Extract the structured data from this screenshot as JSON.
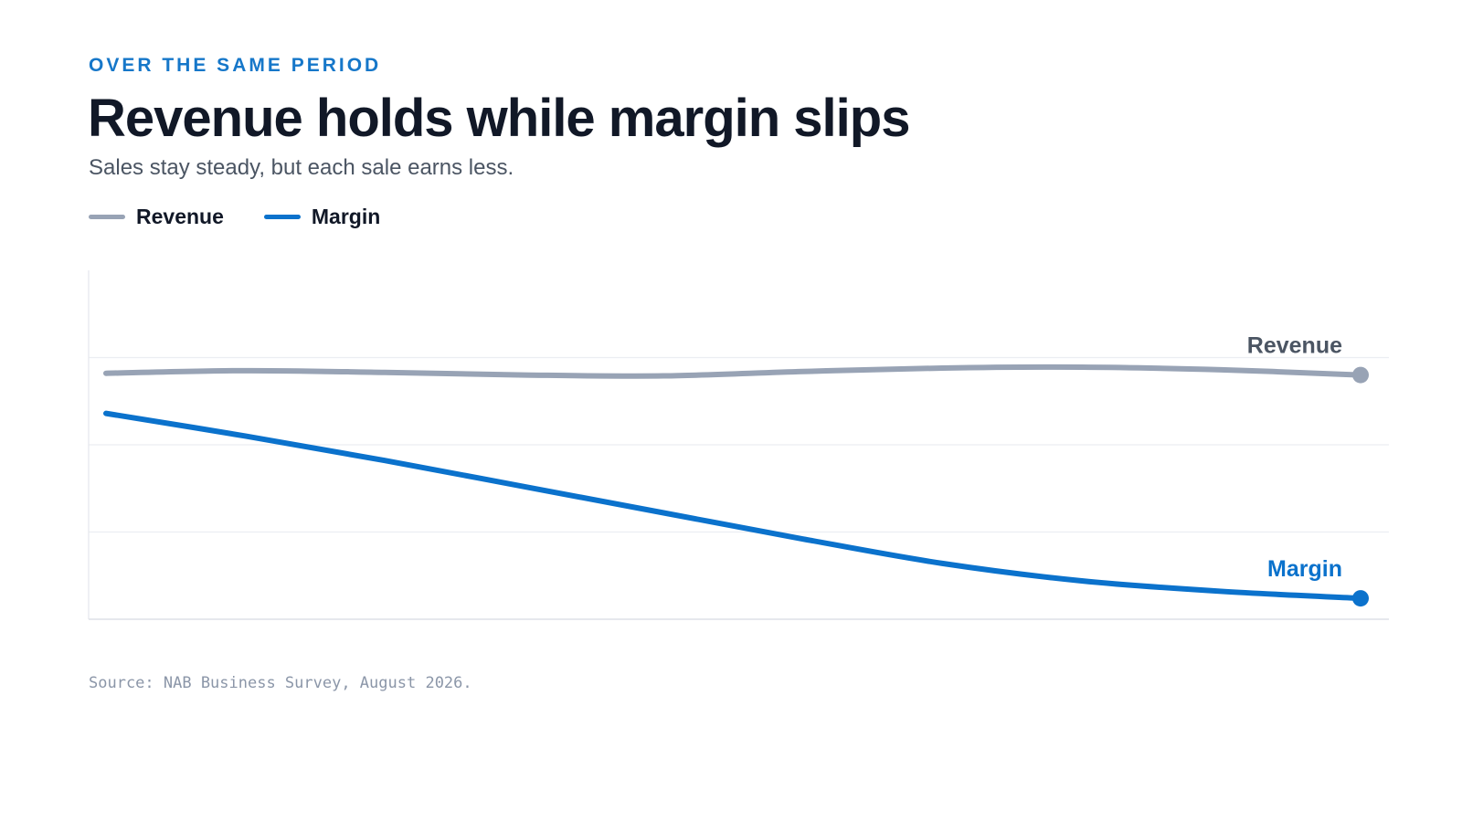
{
  "header": {
    "eyebrow": "OVER THE SAME PERIOD",
    "title": "Revenue holds while margin slips",
    "subtitle": "Sales stay steady, but each sale earns less."
  },
  "legend": [
    {
      "label": "Revenue",
      "color": "#98a3b5"
    },
    {
      "label": "Margin",
      "color": "#0b72cc"
    }
  ],
  "chart_data": {
    "type": "line",
    "title": "Revenue holds while margin slips",
    "subtitle": "Sales stay steady, but each sale earns less.",
    "xlabel": "",
    "ylabel": "",
    "grid": true,
    "legend_position": "top-left",
    "ylim": [
      0,
      4
    ],
    "x": [
      0,
      1,
      2,
      3,
      4,
      5,
      6,
      7,
      8,
      9
    ],
    "series": [
      {
        "name": "Revenue",
        "color": "#98a3b5",
        "end_label": "Revenue",
        "values": [
          2.82,
          2.85,
          2.83,
          2.8,
          2.79,
          2.84,
          2.88,
          2.89,
          2.86,
          2.8
        ]
      },
      {
        "name": "Margin",
        "color": "#0b72cc",
        "end_label": "Margin",
        "values": [
          2.36,
          2.1,
          1.82,
          1.52,
          1.22,
          0.92,
          0.64,
          0.44,
          0.32,
          0.24
        ]
      }
    ]
  },
  "footer": {
    "source": "Source: NAB Business Survey, August 2026."
  }
}
